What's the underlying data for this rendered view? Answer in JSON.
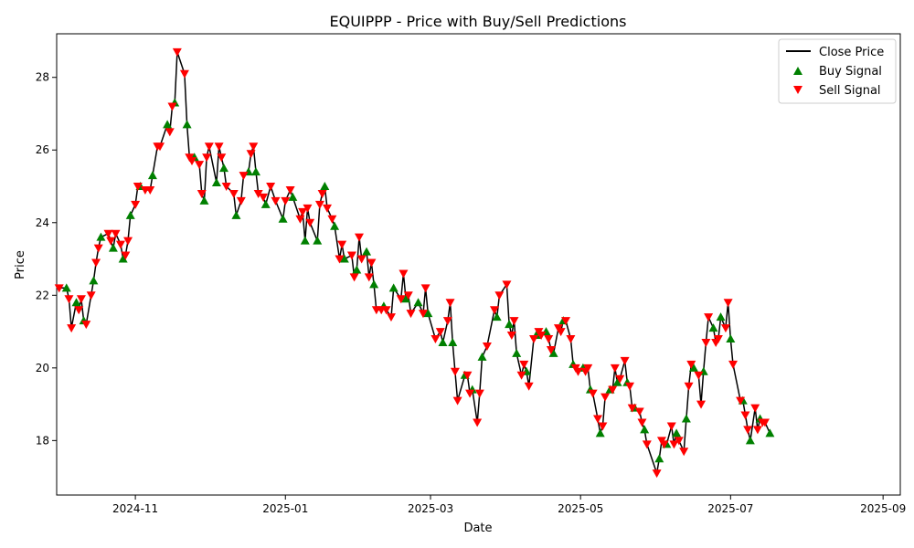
{
  "chart_data": {
    "type": "line",
    "title": "EQUIPPP - Price with Buy/Sell Predictions",
    "xlabel": "Date",
    "ylabel": "Price",
    "xlim": [
      "2025-10-01",
      "2025-09-08"
    ],
    "xlim_dates": [
      "2024-09-30",
      "2025-09-08"
    ],
    "ylim": [
      16.5,
      29.2
    ],
    "x_ticks": [
      {
        "date": "2024-11-01",
        "label": "2024-11"
      },
      {
        "date": "2025-01-01",
        "label": "2025-01"
      },
      {
        "date": "2025-03-01",
        "label": "2025-03"
      },
      {
        "date": "2025-05-01",
        "label": "2025-05"
      },
      {
        "date": "2025-07-01",
        "label": "2025-07"
      },
      {
        "date": "2025-09-01",
        "label": "2025-09"
      }
    ],
    "y_ticks": [
      18,
      20,
      22,
      24,
      26,
      28
    ],
    "legend_position": "top-right",
    "grid": false,
    "legend": [
      {
        "label": "Close Price",
        "kind": "line",
        "color": "#000000"
      },
      {
        "label": "Buy Signal",
        "kind": "marker-up",
        "color": "#008000"
      },
      {
        "label": "Sell Signal",
        "kind": "marker-down",
        "color": "#ff0000"
      }
    ],
    "series": [
      {
        "name": "Close Price",
        "points": [
          [
            "2024-10-01",
            22.2
          ],
          [
            "2024-10-04",
            22.2
          ],
          [
            "2024-10-05",
            21.9
          ],
          [
            "2024-10-06",
            21.1
          ],
          [
            "2024-10-08",
            21.8
          ],
          [
            "2024-10-09",
            21.6
          ],
          [
            "2024-10-10",
            21.9
          ],
          [
            "2024-10-11",
            21.3
          ],
          [
            "2024-10-12",
            21.2
          ],
          [
            "2024-10-14",
            22.0
          ],
          [
            "2024-10-15",
            22.4
          ],
          [
            "2024-10-16",
            22.9
          ],
          [
            "2024-10-17",
            23.3
          ],
          [
            "2024-10-18",
            23.6
          ],
          [
            "2024-10-21",
            23.7
          ],
          [
            "2024-10-22",
            23.5
          ],
          [
            "2024-10-23",
            23.3
          ],
          [
            "2024-10-24",
            23.7
          ],
          [
            "2024-10-26",
            23.4
          ],
          [
            "2024-10-27",
            23.0
          ],
          [
            "2024-10-28",
            23.1
          ],
          [
            "2024-10-29",
            23.5
          ],
          [
            "2024-10-30",
            24.2
          ],
          [
            "2024-11-01",
            24.5
          ],
          [
            "2024-11-02",
            25.0
          ],
          [
            "2024-11-03",
            25.0
          ],
          [
            "2024-11-05",
            24.9
          ],
          [
            "2024-11-07",
            24.9
          ],
          [
            "2024-11-08",
            25.3
          ],
          [
            "2024-11-10",
            26.1
          ],
          [
            "2024-11-11",
            26.1
          ],
          [
            "2024-11-14",
            26.7
          ],
          [
            "2024-11-15",
            26.5
          ],
          [
            "2024-11-16",
            27.2
          ],
          [
            "2024-11-17",
            27.3
          ],
          [
            "2024-11-18",
            28.7
          ],
          [
            "2024-11-21",
            28.1
          ],
          [
            "2024-11-22",
            26.7
          ],
          [
            "2024-11-23",
            25.8
          ],
          [
            "2024-11-24",
            25.7
          ],
          [
            "2024-11-25",
            25.8
          ],
          [
            "2024-11-27",
            25.6
          ],
          [
            "2024-11-28",
            24.8
          ],
          [
            "2024-11-29",
            24.6
          ],
          [
            "2024-11-30",
            25.8
          ],
          [
            "2024-12-01",
            26.1
          ],
          [
            "2024-12-04",
            25.1
          ],
          [
            "2024-12-05",
            26.1
          ],
          [
            "2024-12-06",
            25.8
          ],
          [
            "2024-12-07",
            25.5
          ],
          [
            "2024-12-08",
            25.0
          ],
          [
            "2024-12-11",
            24.8
          ],
          [
            "2024-12-12",
            24.2
          ],
          [
            "2024-12-14",
            24.6
          ],
          [
            "2024-12-15",
            25.3
          ],
          [
            "2024-12-17",
            25.4
          ],
          [
            "2024-12-18",
            25.9
          ],
          [
            "2024-12-19",
            26.1
          ],
          [
            "2024-12-20",
            25.4
          ],
          [
            "2024-12-21",
            24.8
          ],
          [
            "2024-12-23",
            24.7
          ],
          [
            "2024-12-24",
            24.5
          ],
          [
            "2024-12-26",
            25.0
          ],
          [
            "2024-12-28",
            24.6
          ],
          [
            "2024-12-31",
            24.1
          ],
          [
            "2025-01-01",
            24.6
          ],
          [
            "2025-01-03",
            24.9
          ],
          [
            "2025-01-04",
            24.7
          ],
          [
            "2025-01-07",
            24.1
          ],
          [
            "2025-01-08",
            24.3
          ],
          [
            "2025-01-09",
            23.5
          ],
          [
            "2025-01-10",
            24.4
          ],
          [
            "2025-01-11",
            24.0
          ],
          [
            "2025-01-14",
            23.5
          ],
          [
            "2025-01-15",
            24.5
          ],
          [
            "2025-01-16",
            24.8
          ],
          [
            "2025-01-17",
            25.0
          ],
          [
            "2025-01-18",
            24.4
          ],
          [
            "2025-01-20",
            24.1
          ],
          [
            "2025-01-21",
            23.9
          ],
          [
            "2025-01-23",
            23.0
          ],
          [
            "2025-01-24",
            23.4
          ],
          [
            "2025-01-25",
            23.0
          ],
          [
            "2025-01-28",
            23.1
          ],
          [
            "2025-01-29",
            22.5
          ],
          [
            "2025-01-30",
            22.7
          ],
          [
            "2025-01-31",
            23.6
          ],
          [
            "2025-02-01",
            23.0
          ],
          [
            "2025-02-03",
            23.2
          ],
          [
            "2025-02-04",
            22.5
          ],
          [
            "2025-02-05",
            22.9
          ],
          [
            "2025-02-06",
            22.3
          ],
          [
            "2025-02-07",
            21.6
          ],
          [
            "2025-02-09",
            21.6
          ],
          [
            "2025-02-10",
            21.7
          ],
          [
            "2025-02-11",
            21.6
          ],
          [
            "2025-02-13",
            21.4
          ],
          [
            "2025-02-14",
            22.2
          ],
          [
            "2025-02-17",
            21.9
          ],
          [
            "2025-02-18",
            22.6
          ],
          [
            "2025-02-19",
            21.9
          ],
          [
            "2025-02-20",
            22.0
          ],
          [
            "2025-02-21",
            21.5
          ],
          [
            "2025-02-24",
            21.8
          ],
          [
            "2025-02-26",
            21.5
          ],
          [
            "2025-02-27",
            22.2
          ],
          [
            "2025-02-28",
            21.5
          ],
          [
            "2025-03-03",
            20.8
          ],
          [
            "2025-03-05",
            21.0
          ],
          [
            "2025-03-06",
            20.7
          ],
          [
            "2025-03-08",
            21.3
          ],
          [
            "2025-03-09",
            21.8
          ],
          [
            "2025-03-10",
            20.7
          ],
          [
            "2025-03-11",
            19.9
          ],
          [
            "2025-03-12",
            19.1
          ],
          [
            "2025-03-15",
            19.8
          ],
          [
            "2025-03-16",
            19.8
          ],
          [
            "2025-03-17",
            19.3
          ],
          [
            "2025-03-18",
            19.4
          ],
          [
            "2025-03-20",
            18.5
          ],
          [
            "2025-03-21",
            19.3
          ],
          [
            "2025-03-22",
            20.3
          ],
          [
            "2025-03-24",
            20.6
          ],
          [
            "2025-03-27",
            21.6
          ],
          [
            "2025-03-28",
            21.4
          ],
          [
            "2025-03-29",
            22.0
          ],
          [
            "2025-04-01",
            22.3
          ],
          [
            "2025-04-02",
            21.2
          ],
          [
            "2025-04-03",
            20.9
          ],
          [
            "2025-04-04",
            21.3
          ],
          [
            "2025-04-05",
            20.4
          ],
          [
            "2025-04-07",
            19.8
          ],
          [
            "2025-04-08",
            20.1
          ],
          [
            "2025-04-09",
            19.9
          ],
          [
            "2025-04-10",
            19.5
          ],
          [
            "2025-04-12",
            20.8
          ],
          [
            "2025-04-13",
            20.9
          ],
          [
            "2025-04-14",
            21.0
          ],
          [
            "2025-04-15",
            20.9
          ],
          [
            "2025-04-17",
            21.0
          ],
          [
            "2025-04-18",
            20.8
          ],
          [
            "2025-04-19",
            20.5
          ],
          [
            "2025-04-20",
            20.4
          ],
          [
            "2025-04-22",
            21.1
          ],
          [
            "2025-04-23",
            21.0
          ],
          [
            "2025-04-24",
            21.3
          ],
          [
            "2025-04-25",
            21.3
          ],
          [
            "2025-04-27",
            20.8
          ],
          [
            "2025-04-28",
            20.1
          ],
          [
            "2025-04-29",
            20.0
          ],
          [
            "2025-04-30",
            19.9
          ],
          [
            "2025-05-02",
            20.0
          ],
          [
            "2025-05-03",
            19.9
          ],
          [
            "2025-05-04",
            20.0
          ],
          [
            "2025-05-05",
            19.4
          ],
          [
            "2025-05-06",
            19.3
          ],
          [
            "2025-05-08",
            18.6
          ],
          [
            "2025-05-09",
            18.2
          ],
          [
            "2025-05-10",
            18.4
          ],
          [
            "2025-05-11",
            19.2
          ],
          [
            "2025-05-13",
            19.4
          ],
          [
            "2025-05-14",
            19.4
          ],
          [
            "2025-05-15",
            20.0
          ],
          [
            "2025-05-16",
            19.6
          ],
          [
            "2025-05-17",
            19.7
          ],
          [
            "2025-05-19",
            20.2
          ],
          [
            "2025-05-20",
            19.6
          ],
          [
            "2025-05-21",
            19.5
          ],
          [
            "2025-05-22",
            18.9
          ],
          [
            "2025-05-23",
            18.9
          ],
          [
            "2025-05-25",
            18.8
          ],
          [
            "2025-05-26",
            18.5
          ],
          [
            "2025-05-27",
            18.3
          ],
          [
            "2025-05-28",
            17.9
          ],
          [
            "2025-06-01",
            17.1
          ],
          [
            "2025-06-02",
            17.5
          ],
          [
            "2025-06-03",
            18.0
          ],
          [
            "2025-06-04",
            17.9
          ],
          [
            "2025-06-05",
            17.9
          ],
          [
            "2025-06-07",
            18.4
          ],
          [
            "2025-06-08",
            17.9
          ],
          [
            "2025-06-09",
            18.2
          ],
          [
            "2025-06-10",
            18.0
          ],
          [
            "2025-06-12",
            17.7
          ],
          [
            "2025-06-13",
            18.6
          ],
          [
            "2025-06-14",
            19.5
          ],
          [
            "2025-06-15",
            20.1
          ],
          [
            "2025-06-16",
            20.0
          ],
          [
            "2025-06-18",
            19.8
          ],
          [
            "2025-06-19",
            19.0
          ],
          [
            "2025-06-20",
            19.9
          ],
          [
            "2025-06-21",
            20.7
          ],
          [
            "2025-06-22",
            21.4
          ],
          [
            "2025-06-24",
            21.1
          ],
          [
            "2025-06-25",
            20.7
          ],
          [
            "2025-06-26",
            20.8
          ],
          [
            "2025-06-27",
            21.4
          ],
          [
            "2025-06-29",
            21.1
          ],
          [
            "2025-06-30",
            21.8
          ],
          [
            "2025-07-01",
            20.8
          ],
          [
            "2025-07-02",
            20.1
          ],
          [
            "2025-07-05",
            19.1
          ],
          [
            "2025-07-06",
            19.1
          ],
          [
            "2025-07-07",
            18.7
          ],
          [
            "2025-07-08",
            18.3
          ],
          [
            "2025-07-09",
            18.0
          ],
          [
            "2025-07-11",
            18.9
          ],
          [
            "2025-07-12",
            18.3
          ],
          [
            "2025-07-13",
            18.6
          ],
          [
            "2025-07-14",
            18.5
          ],
          [
            "2025-07-15",
            18.5
          ],
          [
            "2025-07-17",
            18.2
          ]
        ]
      }
    ],
    "buy_signals": [],
    "sell_signals": []
  }
}
